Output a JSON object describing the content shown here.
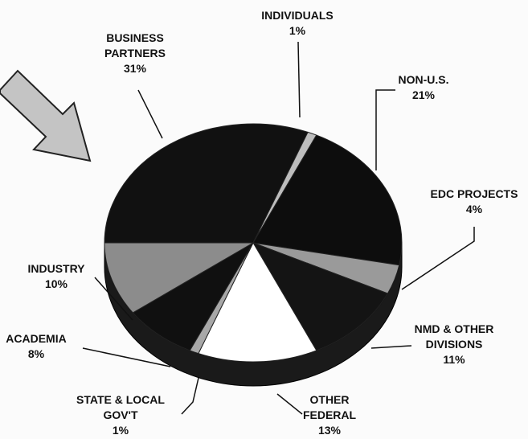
{
  "chart_data": {
    "type": "pie",
    "categories": [
      "BUSINESS PARTNERS",
      "INDIVIDUALS",
      "NON-U.S.",
      "EDC PROJECTS",
      "NMD & OTHER DIVISIONS",
      "OTHER FEDERAL",
      "STATE & LOCAL GOV'T",
      "ACADEMIA",
      "INDUSTRY"
    ],
    "values": [
      31,
      1,
      21,
      4,
      11,
      13,
      1,
      8,
      10
    ],
    "value_labels": [
      "31%",
      "1%",
      "21%",
      "4%",
      "11%",
      "13%",
      "1%",
      "8%",
      "10%"
    ],
    "colors": [
      "#111111",
      "#bdbdbd",
      "#0d0d0d",
      "#9a9a9a",
      "#141414",
      "#ffffff",
      "#a8a8a8",
      "#101010",
      "#8c8c8c"
    ]
  }
}
